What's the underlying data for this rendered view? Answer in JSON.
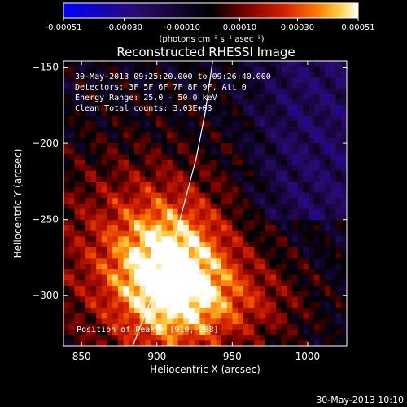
{
  "chart_data": {
    "type": "heatmap",
    "title": "Reconstructed RHESSI Image",
    "xlabel": "Heliocentric X (arcsec)",
    "ylabel": "Heliocentric Y (arcsec)",
    "xlim": [
      838,
      1026
    ],
    "ylim": [
      -333,
      -146
    ],
    "xticks": [
      850,
      900,
      950,
      1000
    ],
    "yticks": [
      -150,
      -200,
      -250,
      -300
    ],
    "colorbar": {
      "ticks": [
        "-0.00051",
        "-0.00030",
        "-0.00010",
        "0.00010",
        "0.00030",
        "0.00051"
      ],
      "tick_values": [
        -0.00051,
        -0.0003,
        -0.0001,
        0.0001,
        0.0003,
        0.00051
      ],
      "range": [
        -0.00051,
        0.00051
      ],
      "unit_label": "(photons cm⁻² s⁻¹ asec⁻²)",
      "colors": [
        "#0000ff",
        "#2a0a6e",
        "#000000",
        "#7a0000",
        "#d42000",
        "#ff7a00",
        "#ffd24a",
        "#ffffff"
      ]
    },
    "peak": {
      "x": 910,
      "y": -288
    },
    "limb_curve": [
      [
        884,
        -333
      ],
      [
        893,
        -310
      ],
      [
        902,
        -290
      ],
      [
        910,
        -270
      ],
      [
        918,
        -240
      ],
      [
        926,
        -210
      ],
      [
        932,
        -180
      ],
      [
        937,
        -146
      ]
    ],
    "annotations": {
      "time_range": "30-May-2013 09:25:20.000 to 09:26:40.000",
      "detectors": "Detectors: 3F 5F 6F 7F 8F 9F, Att 0",
      "energy": "Energy Range: 25.0 - 50.0 keV",
      "clean": "Clean    Total counts: 3.03E+03",
      "peak_label": "Position of Peak = [910,-288]"
    }
  },
  "timestamp": "30-May-2013 10:10"
}
